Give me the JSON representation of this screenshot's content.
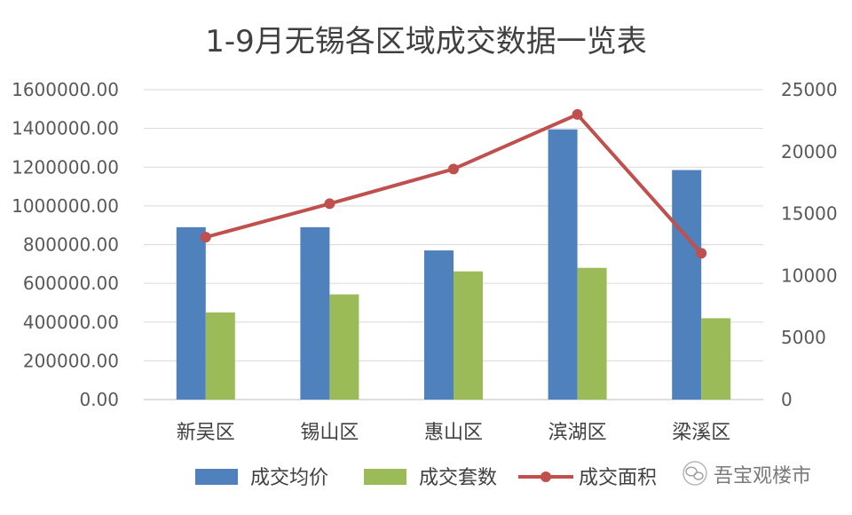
{
  "chart_data": {
    "type": "bar",
    "title": "1-9月无锡各区域成交数据一览表",
    "categories": [
      "新吴区",
      "锡山区",
      "惠山区",
      "滨湖区",
      "梁溪区"
    ],
    "series": [
      {
        "name": "成交均价",
        "type": "bar",
        "axis": "left",
        "color": "#4F81BD",
        "values": [
          890000,
          890000,
          770000,
          1395000,
          1185000
        ]
      },
      {
        "name": "成交套数",
        "type": "bar",
        "axis": "left",
        "color": "#9BBB59",
        "values": [
          450000,
          543000,
          662000,
          680000,
          420000
        ]
      },
      {
        "name": "成交面积",
        "type": "line",
        "axis": "right",
        "color": "#C0504D",
        "values": [
          13100,
          15800,
          18600,
          23000,
          11800
        ]
      }
    ],
    "y_left": {
      "min": 0,
      "max": 1600000,
      "step": 200000,
      "ticks": [
        "0.00",
        "200000.00",
        "400000.00",
        "600000.00",
        "800000.00",
        "1000000.00",
        "1200000.00",
        "1400000.00",
        "1600000.00"
      ]
    },
    "y_right": {
      "min": 0,
      "max": 25000,
      "step": 5000,
      "ticks": [
        "0",
        "5000",
        "10000",
        "15000",
        "20000",
        "25000"
      ]
    },
    "grid": true,
    "legend_position": "bottom"
  },
  "watermark": {
    "text": "吾宝观楼市",
    "icon": "wechat-icon"
  }
}
